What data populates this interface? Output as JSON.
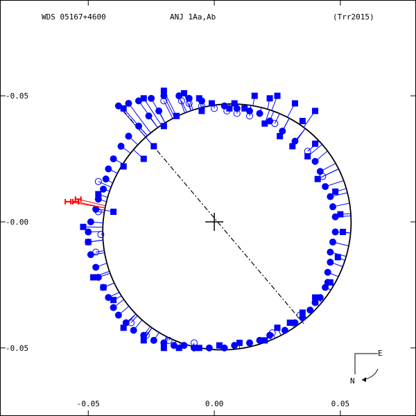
{
  "header": {
    "left": "WDS 05167+4600",
    "center": "ANJ   1Aa,Ab",
    "right": "(Trr2015)"
  },
  "compass": {
    "east": "E",
    "north": "N"
  },
  "colors": {
    "orbit": "#000000",
    "observation": "#0000ff",
    "rejected": "#ff0000"
  },
  "chart_data": {
    "type": "scatter",
    "title": "",
    "x_range": [
      -0.085,
      0.08
    ],
    "y_range": [
      -0.088,
      0.077
    ],
    "y_inverted": true,
    "xticks": [
      {
        "value": -0.05,
        "label": "-0.05"
      },
      {
        "value": 0.0,
        "label": "0.00"
      },
      {
        "value": 0.05,
        "label": "0.05"
      }
    ],
    "yticks": [
      {
        "value": -0.05,
        "label": "-0.05"
      },
      {
        "value": 0.0,
        "label": "-0.00"
      },
      {
        "value": 0.05,
        "label": "-0.05"
      }
    ],
    "orbit_ellipse": {
      "center": [
        0.005,
        0.002
      ],
      "rx": 0.05,
      "ry": 0.048,
      "rotation_deg": -38
    },
    "line_of_nodes": [
      [
        -0.036,
        -0.044
      ],
      [
        0.036,
        0.041
      ]
    ],
    "primary": [
      0.0,
      0.0
    ],
    "series": [
      {
        "marker": "circle",
        "points": [
          [
            -0.038,
            -0.046
          ],
          [
            -0.034,
            -0.047
          ],
          [
            -0.03,
            -0.048
          ],
          [
            -0.025,
            -0.049
          ],
          [
            -0.02,
            -0.05
          ],
          [
            -0.014,
            -0.05
          ],
          [
            -0.01,
            -0.049
          ],
          [
            -0.005,
            -0.048
          ],
          [
            0.004,
            -0.046
          ],
          [
            0.009,
            -0.045
          ],
          [
            0.014,
            -0.044
          ],
          [
            0.018,
            -0.043
          ],
          [
            0.022,
            -0.04
          ],
          [
            0.027,
            -0.036
          ],
          [
            0.032,
            -0.032
          ],
          [
            0.04,
            -0.024
          ],
          [
            0.042,
            -0.02
          ],
          [
            0.044,
            -0.014
          ],
          [
            0.046,
            -0.01
          ],
          [
            0.047,
            -0.006
          ],
          [
            0.048,
            -0.002
          ],
          [
            0.048,
            0.004
          ],
          [
            0.047,
            0.008
          ],
          [
            0.046,
            0.012
          ],
          [
            0.046,
            0.016
          ],
          [
            0.045,
            0.02
          ],
          [
            0.045,
            0.024
          ],
          [
            0.044,
            0.026
          ],
          [
            0.042,
            0.03
          ],
          [
            0.04,
            0.032
          ],
          [
            0.038,
            0.035
          ],
          [
            0.035,
            0.038
          ],
          [
            0.032,
            0.04
          ],
          [
            0.028,
            0.043
          ],
          [
            0.022,
            0.045
          ],
          [
            0.018,
            0.047
          ],
          [
            0.014,
            0.048
          ],
          [
            0.008,
            0.049
          ],
          [
            0.004,
            0.05
          ],
          [
            -0.002,
            0.05
          ],
          [
            -0.008,
            0.05
          ],
          [
            -0.012,
            0.049
          ],
          [
            -0.016,
            0.049
          ],
          [
            -0.02,
            0.048
          ],
          [
            -0.024,
            0.047
          ],
          [
            -0.028,
            0.045
          ],
          [
            -0.032,
            0.043
          ],
          [
            -0.035,
            0.04
          ],
          [
            -0.038,
            0.037
          ],
          [
            -0.04,
            0.034
          ],
          [
            -0.042,
            0.03
          ],
          [
            -0.044,
            0.026
          ],
          [
            -0.046,
            0.022
          ],
          [
            -0.047,
            0.018
          ],
          [
            -0.049,
            0.013
          ],
          [
            -0.05,
            0.008
          ],
          [
            -0.05,
            0.004
          ],
          [
            -0.049,
            0.0
          ],
          [
            -0.047,
            -0.005
          ],
          [
            -0.046,
            -0.009
          ],
          [
            -0.044,
            -0.013
          ],
          [
            -0.043,
            -0.017
          ],
          [
            -0.042,
            -0.021
          ],
          [
            -0.04,
            -0.025
          ],
          [
            -0.037,
            -0.03
          ],
          [
            -0.034,
            -0.034
          ],
          [
            -0.03,
            -0.038
          ],
          [
            -0.026,
            -0.042
          ],
          [
            -0.022,
            -0.044
          ]
        ]
      },
      {
        "marker": "square",
        "points": [
          [
            -0.036,
            -0.045
          ],
          [
            -0.028,
            -0.049
          ],
          [
            -0.02,
            -0.052
          ],
          [
            -0.012,
            -0.051
          ],
          [
            -0.006,
            -0.049
          ],
          [
            -0.001,
            -0.047
          ],
          [
            0.006,
            -0.045
          ],
          [
            0.012,
            -0.045
          ],
          [
            0.02,
            -0.039
          ],
          [
            0.026,
            -0.034
          ],
          [
            0.031,
            -0.03
          ],
          [
            0.037,
            -0.026
          ],
          [
            0.041,
            -0.017
          ],
          [
            0.048,
            -0.012
          ],
          [
            0.05,
            -0.003
          ],
          [
            0.051,
            0.004
          ],
          [
            0.049,
            0.014
          ],
          [
            0.046,
            0.024
          ],
          [
            0.04,
            0.03
          ],
          [
            0.035,
            0.036
          ],
          [
            0.03,
            0.04
          ],
          [
            0.025,
            0.042
          ],
          [
            0.02,
            0.047
          ],
          [
            0.01,
            0.048
          ],
          [
            0.002,
            0.049
          ],
          [
            -0.006,
            0.05
          ],
          [
            -0.014,
            0.05
          ],
          [
            -0.02,
            0.05
          ],
          [
            -0.028,
            0.047
          ],
          [
            -0.036,
            0.042
          ],
          [
            -0.04,
            0.031
          ],
          [
            -0.044,
            0.026
          ],
          [
            -0.048,
            0.022
          ],
          [
            -0.05,
            0.008
          ],
          [
            -0.052,
            0.002
          ],
          [
            -0.04,
            -0.004
          ],
          [
            -0.046,
            -0.011
          ],
          [
            -0.036,
            -0.022
          ],
          [
            -0.028,
            -0.025
          ],
          [
            -0.024,
            -0.03
          ],
          [
            -0.02,
            -0.038
          ],
          [
            -0.015,
            -0.042
          ],
          [
            -0.005,
            -0.044
          ],
          [
            0.008,
            -0.047
          ],
          [
            0.016,
            -0.05
          ],
          [
            0.022,
            -0.049
          ],
          [
            0.035,
            -0.04
          ],
          [
            0.04,
            -0.031
          ],
          [
            0.04,
            -0.044
          ],
          [
            0.032,
            -0.047
          ],
          [
            0.025,
            -0.05
          ]
        ]
      },
      {
        "marker": "open-circle",
        "points": [
          [
            -0.02,
            -0.048
          ],
          [
            -0.013,
            -0.048
          ],
          [
            -0.01,
            -0.047
          ],
          [
            -0.005,
            -0.046
          ],
          [
            0.0,
            -0.045
          ],
          [
            0.005,
            -0.044
          ],
          [
            0.009,
            -0.043
          ],
          [
            0.014,
            -0.042
          ],
          [
            0.024,
            -0.039
          ],
          [
            0.037,
            -0.028
          ],
          [
            0.043,
            -0.018
          ],
          [
            0.04,
            0.032
          ],
          [
            0.034,
            0.037
          ],
          [
            0.023,
            0.044
          ],
          [
            -0.008,
            0.048
          ],
          [
            -0.018,
            0.047
          ],
          [
            -0.027,
            0.045
          ],
          [
            -0.033,
            0.04
          ],
          [
            -0.047,
            0.012
          ],
          [
            -0.045,
            0.005
          ],
          [
            -0.046,
            -0.004
          ],
          [
            -0.046,
            -0.016
          ]
        ]
      }
    ],
    "rejected": [
      [
        -0.058,
        -0.008
      ],
      [
        -0.055,
        -0.008
      ],
      [
        -0.054,
        -0.009
      ]
    ]
  }
}
